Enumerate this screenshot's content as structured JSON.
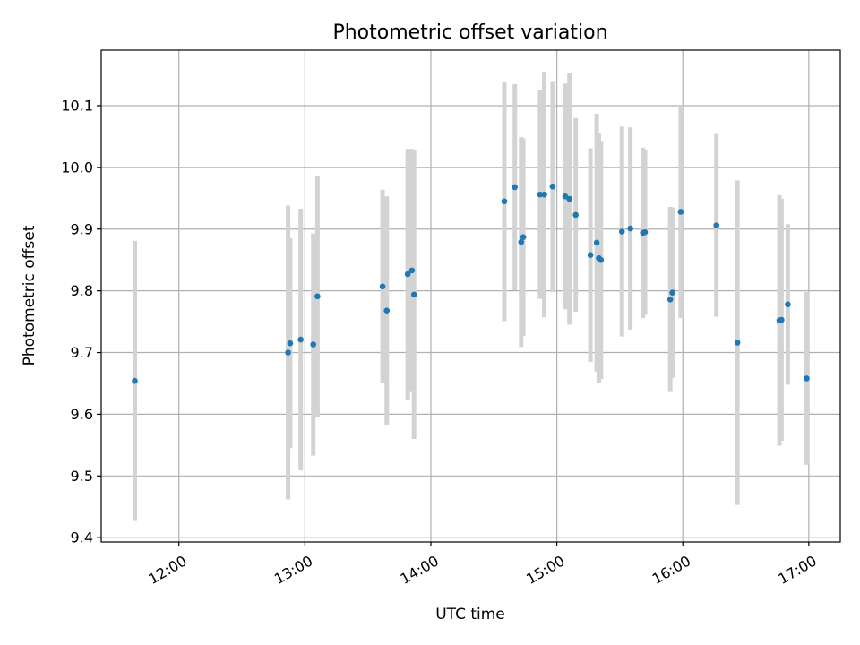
{
  "chart_data": {
    "type": "scatter",
    "title": "Photometric offset variation",
    "xlabel": "UTC time",
    "ylabel": "Photometric offset",
    "x_tick_values": [
      "12:00",
      "13:00",
      "14:00",
      "15:00",
      "16:00",
      "17:00"
    ],
    "y_ticks": [
      9.4,
      9.5,
      9.6,
      9.7,
      9.8,
      9.9,
      10.0,
      10.1
    ],
    "y_tick_labels": [
      "9.4",
      "9.5",
      "9.6",
      "9.7",
      "9.8",
      "9.9",
      "10.0",
      "10.1"
    ],
    "xlim": [
      "11:23",
      "17:15"
    ],
    "ylim": [
      9.393,
      10.19
    ],
    "grid": true,
    "colors": {
      "point": "#1f77b4",
      "errorbar": "#d3d3d3",
      "grid": "#b0b0b0"
    },
    "series": [
      {
        "points": [
          {
            "x": "11:39",
            "y": 9.654,
            "err": 0.227
          },
          {
            "x": "12:52",
            "y": 9.7,
            "err": 0.238
          },
          {
            "x": "12:53",
            "y": 9.715,
            "err": 0.17
          },
          {
            "x": "12:58",
            "y": 9.721,
            "err": 0.212
          },
          {
            "x": "13:04",
            "y": 9.713,
            "err": 0.18
          },
          {
            "x": "13:06",
            "y": 9.791,
            "err": 0.195
          },
          {
            "x": "13:37",
            "y": 9.807,
            "err": 0.157
          },
          {
            "x": "13:39",
            "y": 9.768,
            "err": 0.185
          },
          {
            "x": "13:49",
            "y": 9.827,
            "err": 0.203
          },
          {
            "x": "13:51",
            "y": 9.833,
            "err": 0.197
          },
          {
            "x": "13:52",
            "y": 9.794,
            "err": 0.234
          },
          {
            "x": "14:35",
            "y": 9.945,
            "err": 0.194
          },
          {
            "x": "14:40",
            "y": 9.968,
            "err": 0.167
          },
          {
            "x": "14:43",
            "y": 9.879,
            "err": 0.17
          },
          {
            "x": "14:44",
            "y": 9.887,
            "err": 0.16
          },
          {
            "x": "14:52",
            "y": 9.956,
            "err": 0.169
          },
          {
            "x": "14:54",
            "y": 9.956,
            "err": 0.199
          },
          {
            "x": "14:58",
            "y": 9.969,
            "err": 0.171
          },
          {
            "x": "15:04",
            "y": 9.953,
            "err": 0.183
          },
          {
            "x": "15:06",
            "y": 9.949,
            "err": 0.204
          },
          {
            "x": "15:09",
            "y": 9.923,
            "err": 0.157
          },
          {
            "x": "15:16",
            "y": 9.858,
            "err": 0.173
          },
          {
            "x": "15:19",
            "y": 9.878,
            "err": 0.209
          },
          {
            "x": "15:20",
            "y": 9.853,
            "err": 0.202
          },
          {
            "x": "15:21",
            "y": 9.85,
            "err": 0.193
          },
          {
            "x": "15:31",
            "y": 9.896,
            "err": 0.17
          },
          {
            "x": "15:35",
            "y": 9.901,
            "err": 0.164
          },
          {
            "x": "15:41",
            "y": 9.894,
            "err": 0.138
          },
          {
            "x": "15:42",
            "y": 9.895,
            "err": 0.134
          },
          {
            "x": "15:54",
            "y": 9.786,
            "err": 0.15
          },
          {
            "x": "15:55",
            "y": 9.797,
            "err": 0.138
          },
          {
            "x": "15:59",
            "y": 9.928,
            "err": 0.172
          },
          {
            "x": "16:16",
            "y": 9.906,
            "err": 0.148
          },
          {
            "x": "16:26",
            "y": 9.716,
            "err": 0.263
          },
          {
            "x": "16:46",
            "y": 9.752,
            "err": 0.203
          },
          {
            "x": "16:47",
            "y": 9.753,
            "err": 0.196
          },
          {
            "x": "16:50",
            "y": 9.778,
            "err": 0.13
          },
          {
            "x": "16:59",
            "y": 9.658,
            "err": 0.14
          }
        ]
      }
    ]
  }
}
